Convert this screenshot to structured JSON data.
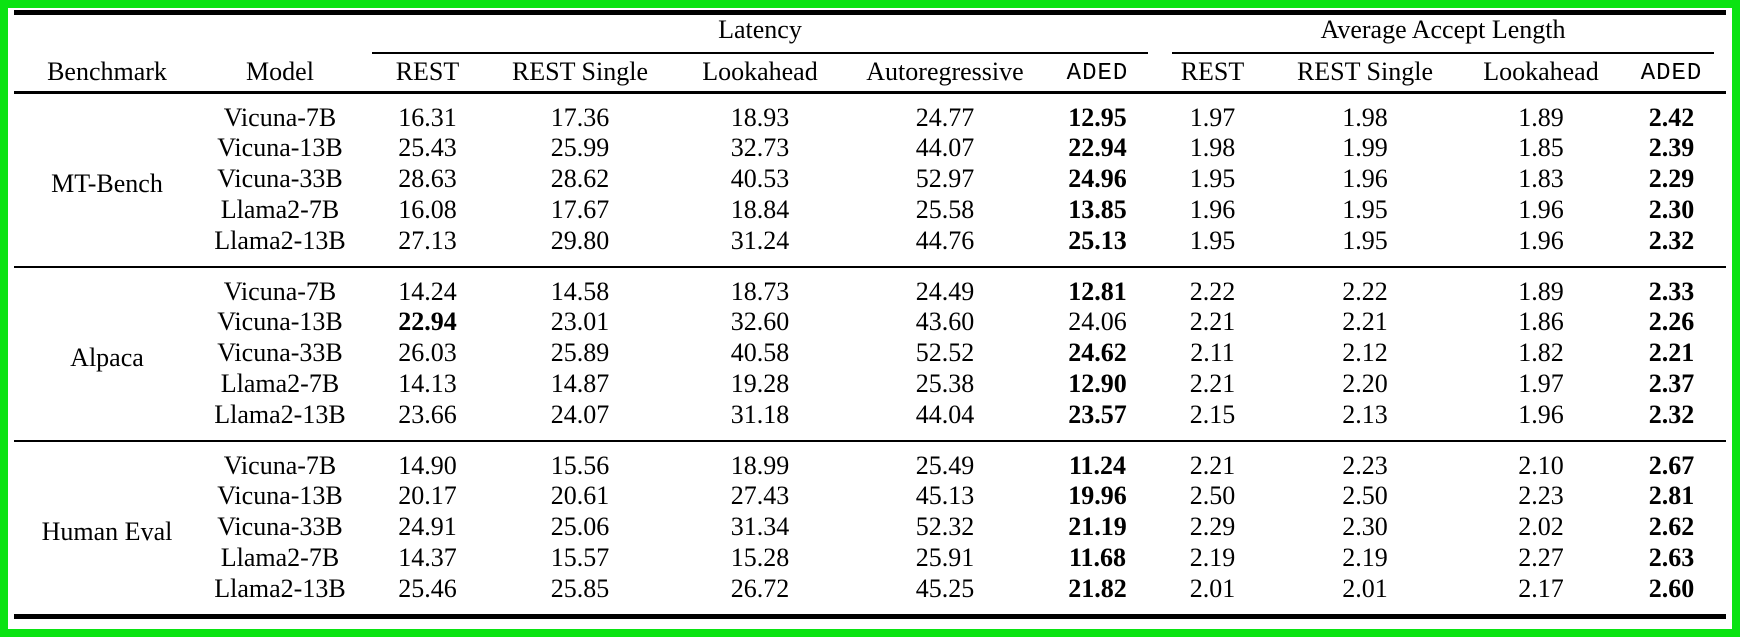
{
  "frame": {
    "border_color": "#0ae312",
    "background": "#ffffff",
    "text_color": "#000000"
  },
  "table": {
    "groups": [
      {
        "label": "Latency",
        "span": 5
      },
      {
        "label": "Average Accept Length",
        "span": 4
      }
    ],
    "columns": [
      {
        "key": "benchmark",
        "label": "Benchmark",
        "mono": false
      },
      {
        "key": "model",
        "label": "Model",
        "mono": false
      },
      {
        "key": "lat-rest",
        "label": "REST",
        "mono": false
      },
      {
        "key": "lat-rest-single",
        "label": "REST Single",
        "mono": false
      },
      {
        "key": "lat-lookahead",
        "label": "Lookahead",
        "mono": false
      },
      {
        "key": "lat-autoregressive",
        "label": "Autoregressive",
        "mono": false
      },
      {
        "key": "lat-aded",
        "label": "ADED",
        "mono": true
      },
      {
        "key": "acc-rest",
        "label": "REST",
        "mono": false
      },
      {
        "key": "acc-rest-single",
        "label": "REST Single",
        "mono": false
      },
      {
        "key": "acc-lookahead",
        "label": "Lookahead",
        "mono": false
      },
      {
        "key": "acc-aded",
        "label": "ADED",
        "mono": true
      }
    ],
    "sections": [
      {
        "benchmark": "MT-Bench",
        "rows": [
          {
            "model": "Vicuna-7B",
            "values": [
              "16.31",
              "17.36",
              "18.93",
              "24.77",
              "12.95",
              "1.97",
              "1.98",
              "1.89",
              "2.42"
            ],
            "bold": [
              4,
              8
            ]
          },
          {
            "model": "Vicuna-13B",
            "values": [
              "25.43",
              "25.99",
              "32.73",
              "44.07",
              "22.94",
              "1.98",
              "1.99",
              "1.85",
              "2.39"
            ],
            "bold": [
              4,
              8
            ]
          },
          {
            "model": "Vicuna-33B",
            "values": [
              "28.63",
              "28.62",
              "40.53",
              "52.97",
              "24.96",
              "1.95",
              "1.96",
              "1.83",
              "2.29"
            ],
            "bold": [
              4,
              8
            ]
          },
          {
            "model": "Llama2-7B",
            "values": [
              "16.08",
              "17.67",
              "18.84",
              "25.58",
              "13.85",
              "1.96",
              "1.95",
              "1.96",
              "2.30"
            ],
            "bold": [
              4,
              8
            ]
          },
          {
            "model": "Llama2-13B",
            "values": [
              "27.13",
              "29.80",
              "31.24",
              "44.76",
              "25.13",
              "1.95",
              "1.95",
              "1.96",
              "2.32"
            ],
            "bold": [
              4,
              8
            ]
          }
        ]
      },
      {
        "benchmark": "Alpaca",
        "rows": [
          {
            "model": "Vicuna-7B",
            "values": [
              "14.24",
              "14.58",
              "18.73",
              "24.49",
              "12.81",
              "2.22",
              "2.22",
              "1.89",
              "2.33"
            ],
            "bold": [
              4,
              8
            ]
          },
          {
            "model": "Vicuna-13B",
            "values": [
              "22.94",
              "23.01",
              "32.60",
              "43.60",
              "24.06",
              "2.21",
              "2.21",
              "1.86",
              "2.26"
            ],
            "bold": [
              0,
              8
            ]
          },
          {
            "model": "Vicuna-33B",
            "values": [
              "26.03",
              "25.89",
              "40.58",
              "52.52",
              "24.62",
              "2.11",
              "2.12",
              "1.82",
              "2.21"
            ],
            "bold": [
              4,
              8
            ]
          },
          {
            "model": "Llama2-7B",
            "values": [
              "14.13",
              "14.87",
              "19.28",
              "25.38",
              "12.90",
              "2.21",
              "2.20",
              "1.97",
              "2.37"
            ],
            "bold": [
              4,
              8
            ]
          },
          {
            "model": "Llama2-13B",
            "values": [
              "23.66",
              "24.07",
              "31.18",
              "44.04",
              "23.57",
              "2.15",
              "2.13",
              "1.96",
              "2.32"
            ],
            "bold": [
              4,
              8
            ]
          }
        ]
      },
      {
        "benchmark": "Human Eval",
        "rows": [
          {
            "model": "Vicuna-7B",
            "values": [
              "14.90",
              "15.56",
              "18.99",
              "25.49",
              "11.24",
              "2.21",
              "2.23",
              "2.10",
              "2.67"
            ],
            "bold": [
              4,
              8
            ]
          },
          {
            "model": "Vicuna-13B",
            "values": [
              "20.17",
              "20.61",
              "27.43",
              "45.13",
              "19.96",
              "2.50",
              "2.50",
              "2.23",
              "2.81"
            ],
            "bold": [
              4,
              8
            ]
          },
          {
            "model": "Vicuna-33B",
            "values": [
              "24.91",
              "25.06",
              "31.34",
              "52.32",
              "21.19",
              "2.29",
              "2.30",
              "2.02",
              "2.62"
            ],
            "bold": [
              4,
              8
            ]
          },
          {
            "model": "Llama2-7B",
            "values": [
              "14.37",
              "15.57",
              "15.28",
              "25.91",
              "11.68",
              "2.19",
              "2.19",
              "2.27",
              "2.63"
            ],
            "bold": [
              4,
              8
            ]
          },
          {
            "model": "Llama2-13B",
            "values": [
              "25.46",
              "25.85",
              "26.72",
              "45.25",
              "21.82",
              "2.01",
              "2.01",
              "2.17",
              "2.60"
            ],
            "bold": [
              4,
              8
            ]
          }
        ]
      }
    ]
  },
  "chart_data": {
    "type": "table",
    "title": "",
    "row_groups": [
      "MT-Bench",
      "Alpaca",
      "Human Eval"
    ],
    "models": [
      "Vicuna-7B",
      "Vicuna-13B",
      "Vicuna-33B",
      "Llama2-7B",
      "Llama2-13B"
    ],
    "metrics": [
      "Latency",
      "Average Accept Length"
    ],
    "latency_methods": [
      "REST",
      "REST Single",
      "Lookahead",
      "Autoregressive",
      "ADED"
    ],
    "accept_length_methods": [
      "REST",
      "REST Single",
      "Lookahead",
      "ADED"
    ]
  }
}
